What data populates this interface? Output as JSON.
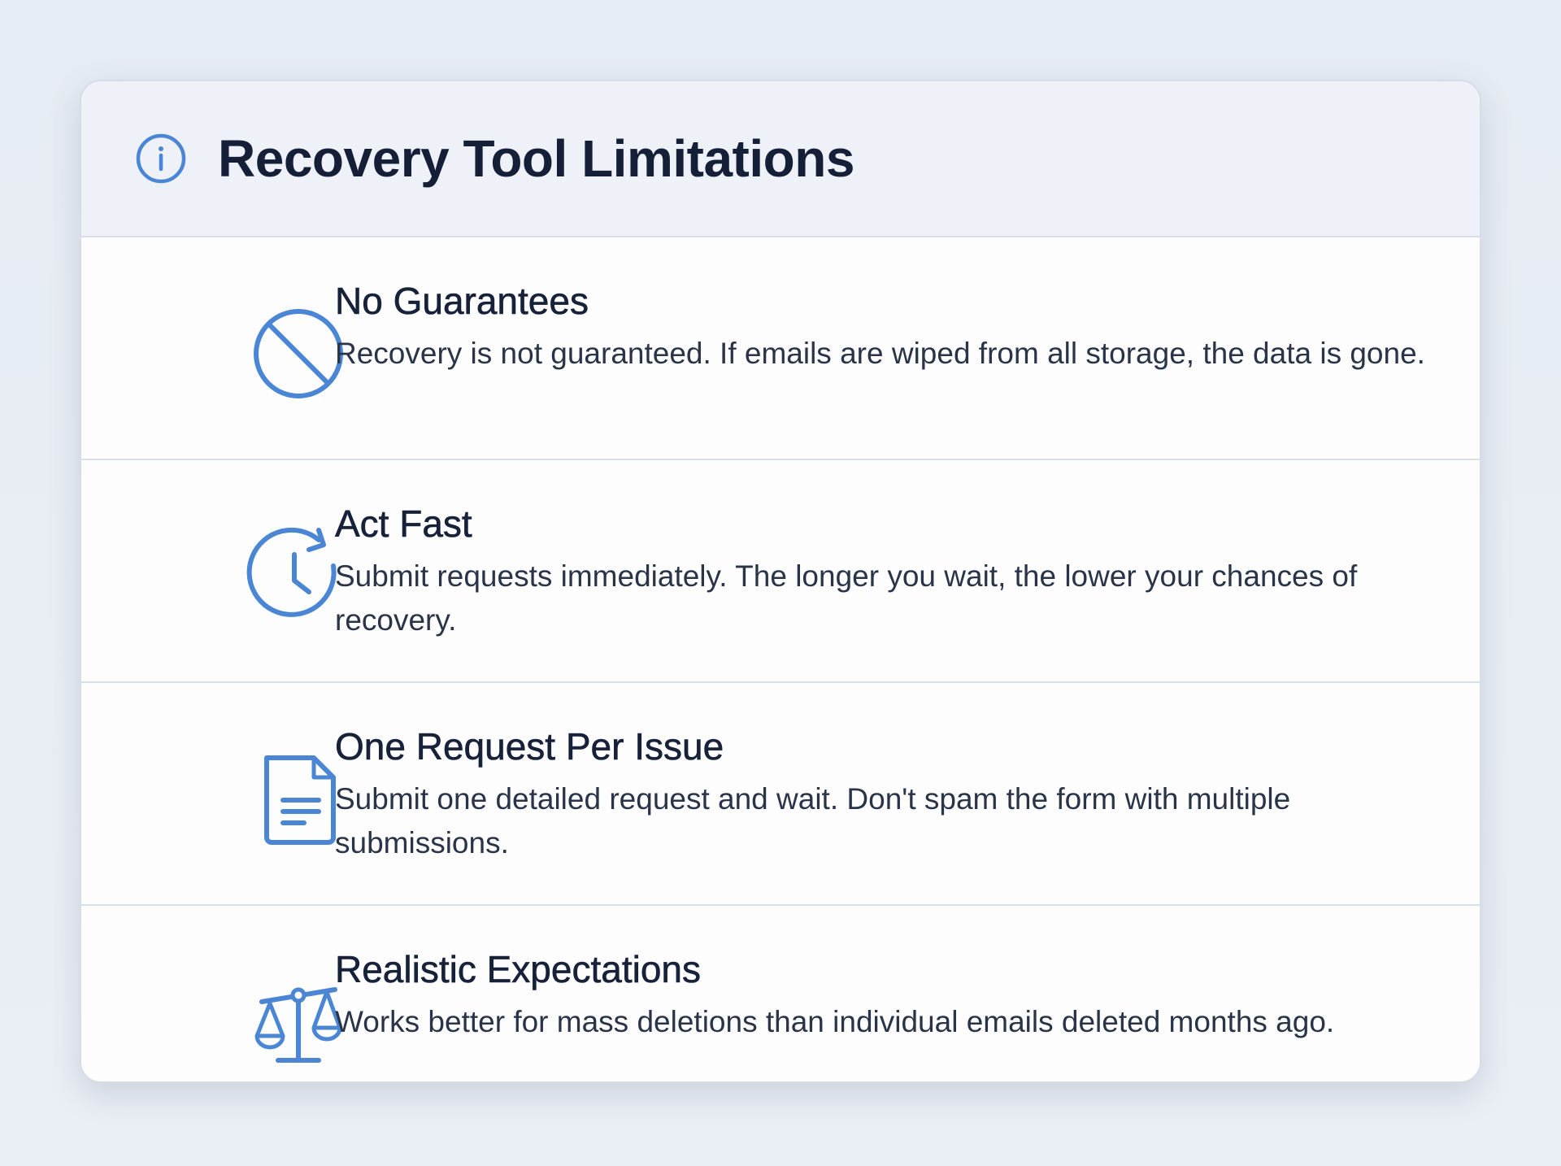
{
  "header": {
    "title": "Recovery Tool Limitations",
    "icon": "info-circle-icon"
  },
  "items": [
    {
      "title": "No Guarantees",
      "description": "Recovery is not guaranteed. If emails are wiped from all storage, the data is gone.",
      "icon": "prohibited-icon"
    },
    {
      "title": "Act Fast",
      "description": "Submit requests immediately. The longer you wait, the lower your chances of recovery.",
      "icon": "clock-refresh-icon"
    },
    {
      "title": "One Request Per Issue",
      "description": "Submit one detailed request and wait. Don't spam the form with multiple submissions.",
      "icon": "document-icon"
    },
    {
      "title": "Realistic Expectations",
      "description": "Works better for mass deletions than individual emails deleted months ago.",
      "icon": "scales-icon"
    }
  ],
  "colors": {
    "accent": "#4a86d4",
    "text": "#17223a",
    "header_bg": "#eef2f8"
  }
}
